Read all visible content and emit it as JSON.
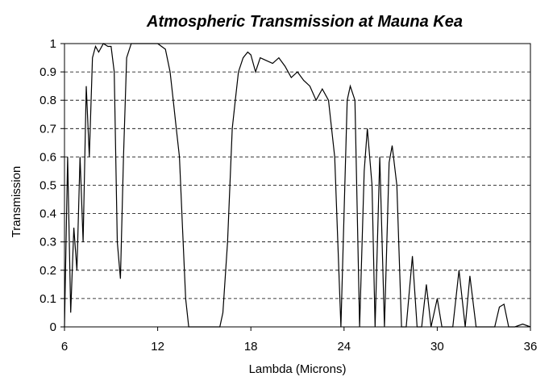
{
  "chart_data": {
    "type": "line",
    "title": "Atmospheric Transmission at Mauna Kea",
    "xlabel": "Lambda (Microns)",
    "ylabel": "Transmission",
    "xlim": [
      6,
      36
    ],
    "ylim": [
      0,
      1
    ],
    "x_ticks": [
      6,
      12,
      18,
      24,
      30,
      36
    ],
    "x_tick_labels": [
      "6",
      "12",
      "18",
      "24",
      "30",
      "36"
    ],
    "y_ticks": [
      0,
      0.1,
      0.2,
      0.3,
      0.4,
      0.5,
      0.6,
      0.7,
      0.8,
      0.9,
      1
    ],
    "y_tick_labels": [
      "0",
      "0.1",
      "0.2",
      "0.3",
      "0.4",
      "0.5",
      "0.6",
      "0.7",
      "0.8",
      "0.9",
      "1"
    ],
    "grid": "horizontal dashed",
    "legend": "none",
    "line_color": "#000000",
    "series": [
      {
        "x": [
          6.0,
          6.2,
          6.4,
          6.6,
          6.8,
          7.0,
          7.2,
          7.4,
          7.6,
          7.8,
          8.0,
          8.2,
          8.5,
          8.8,
          9.0,
          9.2,
          9.4,
          9.6,
          9.8,
          10.0,
          10.3,
          10.6,
          11.0,
          11.5,
          12.0,
          12.5,
          12.8,
          13.0,
          13.2,
          13.4,
          13.6,
          13.8,
          14.0,
          14.2,
          14.4,
          14.6,
          15.0,
          15.5,
          16.0,
          16.2,
          16.5,
          16.8,
          17.0,
          17.2,
          17.5,
          17.8,
          18.0,
          18.3,
          18.6,
          19.0,
          19.4,
          19.8,
          20.2,
          20.6,
          21.0,
          21.4,
          21.8,
          22.2,
          22.6,
          23.0,
          23.4,
          23.8,
          24.2,
          24.4,
          24.7,
          25.0,
          25.3,
          25.5,
          25.8,
          26.0,
          26.3,
          26.6,
          26.9,
          27.1,
          27.4,
          27.7,
          28.0,
          28.4,
          28.7,
          29.0,
          29.3,
          29.6,
          30.0,
          30.3,
          30.6,
          31.0,
          31.4,
          31.8,
          32.1,
          32.5,
          32.9,
          33.3,
          33.7,
          34.0,
          34.3,
          34.6,
          35.0,
          35.5,
          36.0
        ],
        "values": [
          0.0,
          0.6,
          0.05,
          0.35,
          0.2,
          0.6,
          0.3,
          0.85,
          0.6,
          0.95,
          0.99,
          0.97,
          1.0,
          0.99,
          0.99,
          0.9,
          0.3,
          0.17,
          0.6,
          0.95,
          1.0,
          1.0,
          1.0,
          1.0,
          1.0,
          0.98,
          0.9,
          0.8,
          0.7,
          0.6,
          0.35,
          0.1,
          0.0,
          0.0,
          0.0,
          0.0,
          0.0,
          0.0,
          0.0,
          0.05,
          0.3,
          0.7,
          0.8,
          0.9,
          0.95,
          0.97,
          0.96,
          0.9,
          0.95,
          0.94,
          0.93,
          0.95,
          0.92,
          0.88,
          0.9,
          0.87,
          0.85,
          0.8,
          0.84,
          0.8,
          0.6,
          0.0,
          0.8,
          0.85,
          0.8,
          0.0,
          0.55,
          0.7,
          0.5,
          0.0,
          0.6,
          0.0,
          0.58,
          0.64,
          0.5,
          0.0,
          0.0,
          0.25,
          0.0,
          0.0,
          0.15,
          0.0,
          0.1,
          0.0,
          0.0,
          0.0,
          0.2,
          0.0,
          0.18,
          0.0,
          0.0,
          0.0,
          0.0,
          0.07,
          0.08,
          0.0,
          0.0,
          0.01,
          0.0
        ]
      }
    ]
  }
}
